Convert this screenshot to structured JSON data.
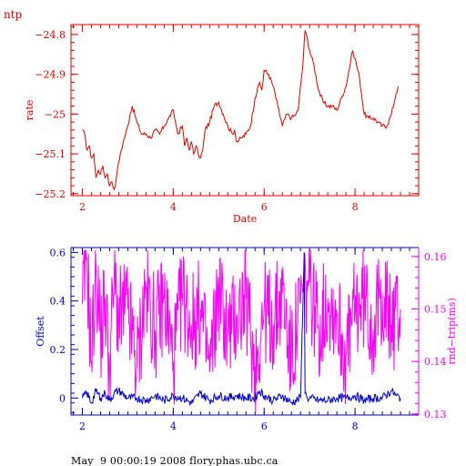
{
  "footer_text": "May  9 00:00:19 2008 flory.phas.ubc.ca",
  "chart_data": [
    {
      "type": "line",
      "title": "ntp",
      "xlabel": "Date",
      "ylabel": "rate",
      "xlim": [
        1.75,
        9.4
      ],
      "ylim": [
        -25.205,
        -24.775
      ],
      "xticks": [
        2,
        4,
        6,
        8
      ],
      "yticks": [
        -25.2,
        -25.1,
        -25,
        -24.9,
        -24.8
      ],
      "ytick_labels": [
        "−25.2",
        "−25.1",
        "−25",
        "−24.9",
        "−24.8"
      ],
      "color": "#e00000",
      "series": [
        {
          "x": [
            2.0,
            2.05,
            2.1,
            2.15,
            2.2,
            2.25,
            2.3,
            2.35,
            2.4,
            2.45,
            2.5,
            2.55,
            2.6,
            2.65,
            2.7,
            2.75,
            2.8,
            2.9,
            3.0,
            3.05,
            3.1,
            3.2,
            3.3,
            3.4,
            3.5,
            3.6,
            3.7,
            3.8,
            3.9,
            4.0,
            4.05,
            4.1,
            4.2,
            4.25,
            4.3,
            4.35,
            4.4,
            4.45,
            4.5,
            4.55,
            4.6,
            4.65,
            4.7,
            4.8,
            4.9,
            5.0,
            5.1,
            5.2,
            5.3,
            5.35,
            5.4,
            5.5,
            5.6,
            5.7,
            5.8,
            5.9,
            5.95,
            6.0,
            6.1,
            6.2,
            6.3,
            6.4,
            6.5,
            6.6,
            6.7,
            6.75,
            6.8,
            6.85,
            6.9,
            6.95,
            7.0,
            7.1,
            7.2,
            7.3,
            7.4,
            7.5,
            7.6,
            7.7,
            7.8,
            7.9,
            7.95,
            8.0,
            8.1,
            8.2,
            8.3,
            8.4,
            8.5,
            8.6,
            8.7,
            8.8,
            8.9,
            8.95
          ],
          "y": [
            -25.04,
            -25.05,
            -25.09,
            -25.08,
            -25.11,
            -25.1,
            -25.16,
            -25.14,
            -25.15,
            -25.13,
            -25.16,
            -25.15,
            -25.18,
            -25.17,
            -25.19,
            -25.16,
            -25.12,
            -25.07,
            -25.03,
            -25.0,
            -24.98,
            -25.02,
            -25.05,
            -25.05,
            -25.06,
            -25.04,
            -25.05,
            -25.03,
            -25.01,
            -24.99,
            -25.02,
            -25.05,
            -25.03,
            -25.08,
            -25.06,
            -25.09,
            -25.07,
            -25.1,
            -25.08,
            -25.1,
            -25.11,
            -25.09,
            -25.04,
            -25.02,
            -24.98,
            -24.97,
            -25.0,
            -25.03,
            -25.05,
            -25.04,
            -25.07,
            -25.06,
            -25.05,
            -25.03,
            -24.96,
            -24.92,
            -24.94,
            -24.89,
            -24.9,
            -24.93,
            -24.98,
            -25.03,
            -25.0,
            -25.01,
            -25.0,
            -24.99,
            -24.93,
            -24.88,
            -24.79,
            -24.81,
            -24.84,
            -24.88,
            -24.94,
            -24.97,
            -24.98,
            -24.98,
            -24.99,
            -24.96,
            -24.93,
            -24.87,
            -24.84,
            -24.86,
            -24.91,
            -25.0,
            -25.01,
            -25.01,
            -25.02,
            -25.03,
            -25.03,
            -25.0,
            -24.95,
            -24.93
          ]
        }
      ]
    },
    {
      "type": "line",
      "xlim": [
        1.75,
        9.4
      ],
      "xticks": [
        2,
        4,
        6,
        8
      ],
      "ylabel": "Offset",
      "y2label": "rnd−trip(ms)",
      "ylim": [
        -0.07,
        0.62
      ],
      "y2lim": [
        0.1298,
        0.1617
      ],
      "yticks": [
        0,
        0.2,
        0.4,
        0.6
      ],
      "ytick_labels": [
        "0",
        "0.2",
        "0.4",
        "0.6"
      ],
      "y2ticks": [
        0.13,
        0.14,
        0.15,
        0.16
      ],
      "y2tick_labels": [
        "0.13",
        "0.14",
        "0.15",
        "0.16"
      ],
      "series": [
        {
          "name": "Offset",
          "axis": "left",
          "color": "#0000cc",
          "x": [
            2.0,
            2.1,
            2.2,
            2.3,
            2.4,
            2.5,
            2.6,
            2.7,
            2.8,
            3.0,
            3.2,
            3.4,
            3.6,
            3.8,
            4.0,
            4.2,
            4.4,
            4.6,
            4.8,
            5.0,
            5.2,
            5.4,
            5.6,
            5.8,
            5.9,
            6.0,
            6.2,
            6.4,
            6.6,
            6.8,
            6.88,
            6.9,
            6.95,
            7.0,
            7.2,
            7.4,
            7.6,
            7.8,
            8.0,
            8.2,
            8.4,
            8.6,
            8.8,
            8.9,
            9.0
          ],
          "y": [
            0.0,
            0.02,
            -0.02,
            0.03,
            0.0,
            0.02,
            -0.01,
            0.02,
            0.03,
            0.0,
            0.0,
            -0.01,
            0.01,
            -0.01,
            0.01,
            0.0,
            -0.02,
            0.02,
            -0.01,
            0.01,
            0.0,
            0.01,
            0.0,
            0.0,
            0.03,
            0.01,
            -0.01,
            0.01,
            -0.02,
            0.0,
            0.6,
            0.02,
            0.0,
            0.0,
            -0.01,
            -0.01,
            0.0,
            0.0,
            0.01,
            -0.01,
            0.0,
            0.0,
            0.03,
            0.01,
            0.0
          ]
        },
        {
          "name": "rnd−trip(ms)",
          "axis": "right",
          "color": "#ff00ff",
          "x": [
            2.0,
            2.1,
            2.2,
            2.3,
            2.4,
            2.5,
            2.6,
            2.7,
            2.8,
            3.0,
            3.2,
            3.4,
            3.6,
            3.8,
            4.0,
            4.2,
            4.4,
            4.6,
            4.8,
            5.0,
            5.2,
            5.4,
            5.6,
            5.8,
            6.0,
            6.2,
            6.4,
            6.6,
            6.8,
            7.0,
            7.2,
            7.4,
            7.6,
            7.8,
            8.0,
            8.2,
            8.4,
            8.6,
            8.8,
            9.0
          ],
          "y": [
            0.151,
            0.16,
            0.14,
            0.158,
            0.145,
            0.152,
            0.139,
            0.156,
            0.148,
            0.15,
            0.139,
            0.154,
            0.146,
            0.152,
            0.14,
            0.153,
            0.147,
            0.15,
            0.138,
            0.154,
            0.145,
            0.149,
            0.152,
            0.139,
            0.15,
            0.147,
            0.153,
            0.14,
            0.151,
            0.155,
            0.146,
            0.152,
            0.149,
            0.141,
            0.15,
            0.152,
            0.146,
            0.153,
            0.147,
            0.15
          ]
        }
      ]
    }
  ]
}
